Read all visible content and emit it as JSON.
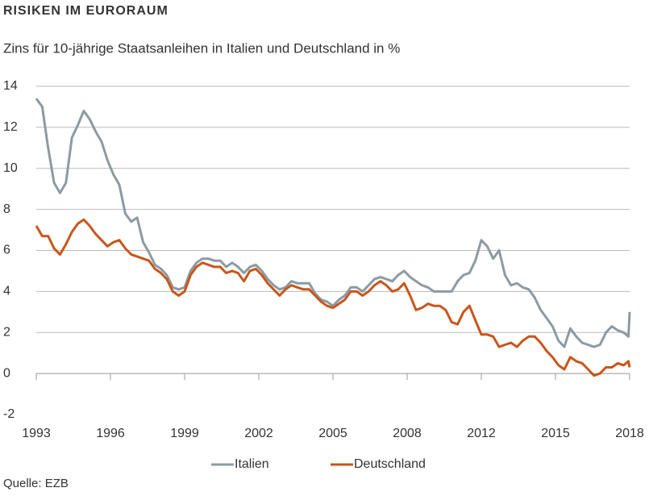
{
  "chart_data": {
    "type": "line",
    "title": "RISIKEN IM EURORAUM",
    "subtitle": "Zins für 10-jährige Staatsanleihen in Italien und Deutschland in %",
    "source": "Quelle: EZB",
    "x": [
      1993,
      1993.25,
      1993.5,
      1993.75,
      1994,
      1994.25,
      1994.5,
      1994.75,
      1995,
      1995.25,
      1995.5,
      1995.75,
      1996,
      1996.25,
      1996.5,
      1996.75,
      1997,
      1997.25,
      1997.5,
      1997.75,
      1998,
      1998.25,
      1998.5,
      1998.75,
      1999,
      1999.25,
      1999.5,
      1999.75,
      2000,
      2000.25,
      2000.5,
      2000.75,
      2001,
      2001.25,
      2001.5,
      2001.75,
      2002,
      2002.25,
      2002.5,
      2002.75,
      2003,
      2003.25,
      2003.5,
      2003.75,
      2004,
      2004.25,
      2004.5,
      2004.75,
      2005,
      2005.25,
      2005.5,
      2005.75,
      2006,
      2006.25,
      2006.5,
      2006.75,
      2007,
      2007.25,
      2007.5,
      2007.75,
      2008,
      2008.25,
      2008.5,
      2008.75,
      2009,
      2009.25,
      2009.5,
      2009.75,
      2010,
      2010.25,
      2010.5,
      2010.75,
      2011,
      2011.25,
      2011.5,
      2011.75,
      2012,
      2012.25,
      2012.5,
      2012.75,
      2013,
      2013.25,
      2013.5,
      2013.75,
      2014,
      2014.25,
      2014.5,
      2014.75,
      2015,
      2015.25,
      2015.5,
      2015.75,
      2016,
      2016.25,
      2016.5,
      2016.75,
      2017,
      2017.25,
      2017.5,
      2017.75,
      2017.95,
      2018
    ],
    "series": [
      {
        "name": "Italien",
        "color": "#8c9aa3",
        "values": [
          13.4,
          13.0,
          11,
          9.3,
          8.8,
          9.3,
          11.5,
          12.1,
          12.8,
          12.4,
          11.8,
          11.3,
          10.4,
          9.7,
          9.2,
          7.8,
          7.4,
          7.6,
          6.4,
          5.9,
          5.3,
          5.1,
          4.8,
          4.2,
          4.1,
          4.2,
          5.0,
          5.4,
          5.6,
          5.6,
          5.5,
          5.5,
          5.2,
          5.4,
          5.2,
          4.9,
          5.2,
          5.3,
          5.0,
          4.6,
          4.3,
          4.1,
          4.2,
          4.5,
          4.4,
          4.4,
          4.4,
          3.9,
          3.6,
          3.5,
          3.3,
          3.6,
          3.8,
          4.2,
          4.2,
          4.0,
          4.3,
          4.6,
          4.7,
          4.6,
          4.5,
          4.8,
          5.0,
          4.7,
          4.5,
          4.3,
          4.2,
          4.0,
          4.0,
          4.0,
          4.0,
          4.5,
          4.8,
          4.9,
          5.5,
          6.5,
          6.2,
          5.6,
          6.0,
          4.8,
          4.3,
          4.4,
          4.2,
          4.1,
          3.7,
          3.1,
          2.7,
          2.3,
          1.6,
          1.3,
          2.2,
          1.8,
          1.5,
          1.4,
          1.3,
          1.4,
          2.0,
          2.3,
          2.1,
          2.0,
          1.8,
          3.0
        ]
      },
      {
        "name": "Deutschland",
        "color": "#c8561a",
        "values": [
          7.2,
          6.7,
          6.7,
          6.1,
          5.8,
          6.3,
          6.9,
          7.3,
          7.5,
          7.2,
          6.8,
          6.5,
          6.2,
          6.4,
          6.5,
          6.1,
          5.8,
          5.7,
          5.6,
          5.5,
          5.1,
          4.9,
          4.6,
          4.0,
          3.8,
          4.0,
          4.8,
          5.2,
          5.4,
          5.3,
          5.2,
          5.2,
          4.9,
          5.0,
          4.9,
          4.5,
          5.0,
          5.1,
          4.8,
          4.4,
          4.1,
          3.8,
          4.1,
          4.3,
          4.2,
          4.1,
          4.1,
          3.8,
          3.5,
          3.3,
          3.2,
          3.4,
          3.6,
          4.0,
          4.0,
          3.8,
          4.0,
          4.3,
          4.5,
          4.3,
          4.0,
          4.1,
          4.4,
          3.8,
          3.1,
          3.2,
          3.4,
          3.3,
          3.3,
          3.1,
          2.5,
          2.4,
          3.0,
          3.3,
          2.6,
          1.9,
          1.9,
          1.8,
          1.3,
          1.4,
          1.5,
          1.3,
          1.6,
          1.8,
          1.8,
          1.5,
          1.1,
          0.8,
          0.4,
          0.2,
          0.8,
          0.6,
          0.5,
          0.2,
          -0.1,
          0.0,
          0.3,
          0.3,
          0.5,
          0.4,
          0.6,
          0.3
        ]
      }
    ],
    "xlim": [
      1993,
      2018
    ],
    "xticks": [
      1993,
      {
        "value": 1996.125,
        "label": "1996"
      },
      {
        "value": 1999.25,
        "label": "1999"
      },
      {
        "value": 2002.375,
        "label": "2002"
      },
      {
        "value": 2005.5,
        "label": "2005"
      },
      {
        "value": 2008.625,
        "label": "2008"
      },
      {
        "value": 2011.75,
        "label": "2012"
      },
      {
        "value": 2014.875,
        "label": "2015"
      },
      2018
    ],
    "ylim": [
      -2,
      14
    ],
    "yticks": [
      -2,
      0,
      2,
      4,
      6,
      8,
      10,
      12,
      14
    ],
    "grid": true,
    "legend": "bottom"
  }
}
